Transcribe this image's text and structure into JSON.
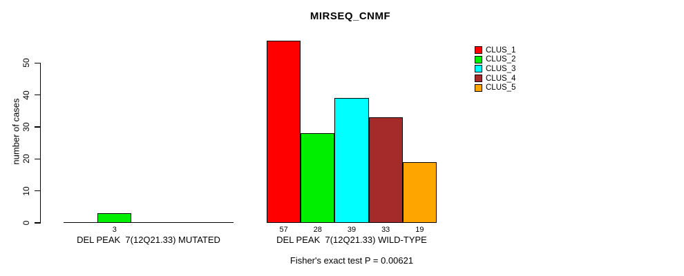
{
  "chart": {
    "title": "MIRSEQ_CNMF",
    "ylabel": "number of cases",
    "annotation": "Fisher's exact test P = 0.00621"
  },
  "chart_data": {
    "type": "bar",
    "title": "MIRSEQ_CNMF",
    "xlabel": "",
    "ylabel": "number of cases",
    "yticks": [
      0,
      10,
      20,
      30,
      40,
      50
    ],
    "ylim": [
      0,
      57
    ],
    "grid": false,
    "legend_position": "top-right",
    "categories": [
      "DEL PEAK  7(12Q21.33) MUTATED",
      "DEL PEAK  7(12Q21.33) WILD-TYPE"
    ],
    "series": [
      {
        "name": "CLUS_1",
        "color": "#FF0000",
        "values": [
          0,
          57
        ]
      },
      {
        "name": "CLUS_2",
        "color": "#00EE00",
        "values": [
          3,
          28
        ]
      },
      {
        "name": "CLUS_3",
        "color": "#00FFFF",
        "values": [
          0,
          39
        ]
      },
      {
        "name": "CLUS_4",
        "color": "#A52A2A",
        "values": [
          0,
          33
        ]
      },
      {
        "name": "CLUS_5",
        "color": "#FFA500",
        "values": [
          0,
          19
        ]
      }
    ],
    "bar_value_labels": [
      [
        "",
        "3",
        "",
        "",
        ""
      ],
      [
        "57",
        "28",
        "39",
        "33",
        "19"
      ]
    ],
    "annotation": "Fisher's exact test P = 0.00621"
  }
}
